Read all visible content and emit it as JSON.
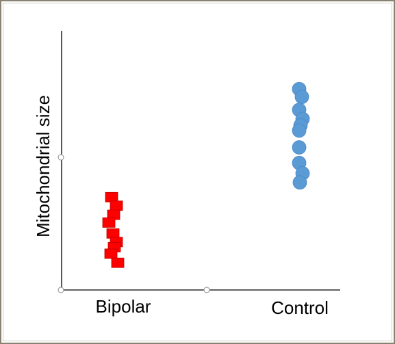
{
  "chart_data": {
    "type": "scatter",
    "title": "",
    "xlabel": "",
    "ylabel": "Mitochondrial size",
    "categories": [
      "Bipolar",
      "Control"
    ],
    "series": [
      {
        "category": "Bipolar",
        "marker": "square",
        "color": "#ff0000",
        "points": [
          {
            "jitter": -0.07,
            "y": 0.358
          },
          {
            "jitter": 0.0,
            "y": 0.325
          },
          {
            "jitter": -0.04,
            "y": 0.29
          },
          {
            "jitter": -0.11,
            "y": 0.26
          },
          {
            "jitter": -0.05,
            "y": 0.218
          },
          {
            "jitter": 0.0,
            "y": 0.185
          },
          {
            "jitter": -0.03,
            "y": 0.165
          },
          {
            "jitter": -0.08,
            "y": 0.14
          },
          {
            "jitter": 0.02,
            "y": 0.105
          }
        ]
      },
      {
        "category": "Control",
        "marker": "circle",
        "color": "#5b9bd5",
        "points": [
          {
            "jitter": -0.03,
            "y": 0.775
          },
          {
            "jitter": 0.01,
            "y": 0.745
          },
          {
            "jitter": -0.03,
            "y": 0.695
          },
          {
            "jitter": 0.02,
            "y": 0.66
          },
          {
            "jitter": -0.01,
            "y": 0.635
          },
          {
            "jitter": -0.03,
            "y": 0.615
          },
          {
            "jitter": -0.03,
            "y": 0.55
          },
          {
            "jitter": -0.03,
            "y": 0.49
          },
          {
            "jitter": 0.02,
            "y": 0.45
          },
          {
            "jitter": -0.02,
            "y": 0.415
          }
        ]
      }
    ],
    "ylim": [
      0,
      1
    ],
    "grid": false,
    "legend": "none",
    "axis_color": "#000000",
    "handle_color": "#8c8c8c"
  }
}
